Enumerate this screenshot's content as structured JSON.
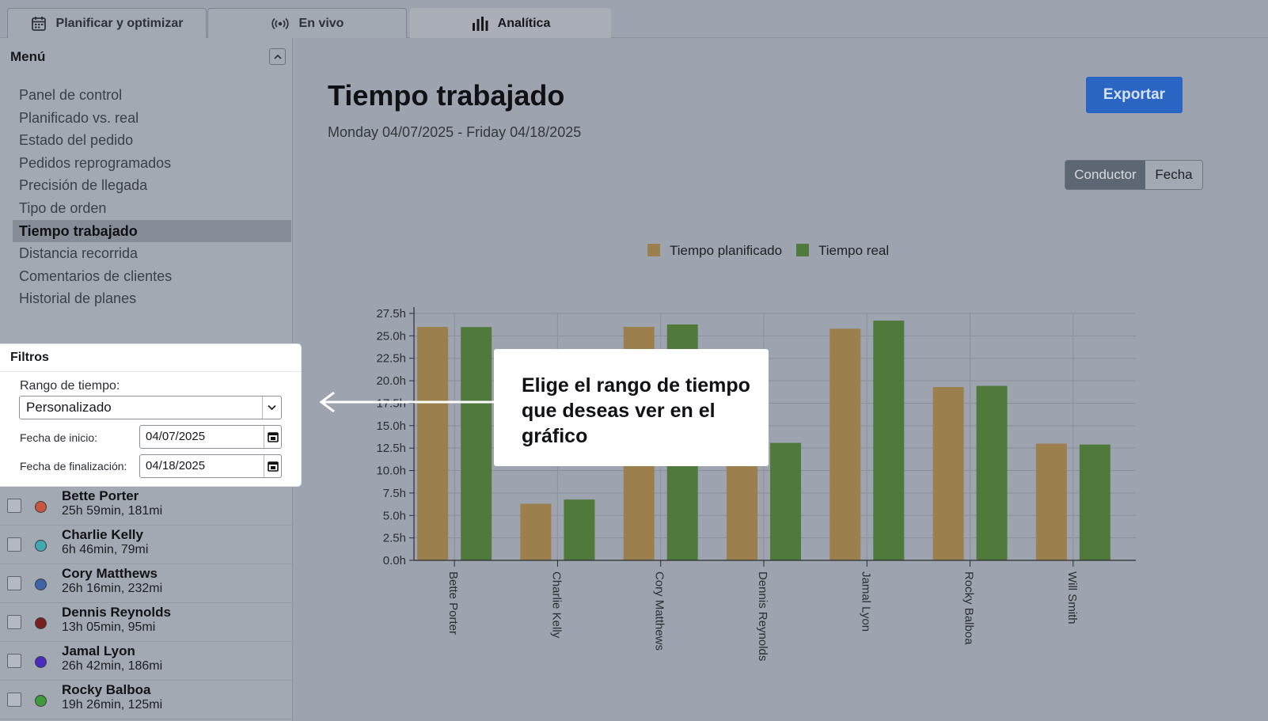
{
  "tabs": [
    {
      "label": "Planificar y optimizar",
      "icon": "calendar-icon"
    },
    {
      "label": "En vivo",
      "icon": "broadcast-icon"
    },
    {
      "label": "Analítica",
      "icon": "bar-chart-icon"
    }
  ],
  "sidebar": {
    "menu_title": "Menú",
    "items": [
      {
        "label": "Panel de control"
      },
      {
        "label": "Planificado vs. real"
      },
      {
        "label": "Estado del pedido"
      },
      {
        "label": "Pedidos reprogramados"
      },
      {
        "label": "Precisión de llegada"
      },
      {
        "label": "Tipo de orden"
      },
      {
        "label": "Tiempo trabajado"
      },
      {
        "label": "Distancia recorrida"
      },
      {
        "label": "Comentarios de clientes"
      },
      {
        "label": "Historial de planes"
      }
    ],
    "active_item": "Tiempo trabajado"
  },
  "filters": {
    "title": "Filtros",
    "range_label": "Rango de tiempo:",
    "range_value": "Personalizado",
    "start_label": "Fecha de inicio:",
    "start_value": "04/07/2025",
    "end_label": "Fecha de finalización:",
    "end_value": "04/18/2025"
  },
  "drivers": [
    {
      "name": "Bette Porter",
      "stats": "25h 59min, 181mi",
      "color": "#c8553d"
    },
    {
      "name": "Charlie Kelly",
      "stats": "6h 46min, 79mi",
      "color": "#3fa8b0"
    },
    {
      "name": "Cory Matthews",
      "stats": "26h 16min, 232mi",
      "color": "#3f63a8"
    },
    {
      "name": "Dennis Reynolds",
      "stats": "13h 05min, 95mi",
      "color": "#7a1f1f"
    },
    {
      "name": "Jamal Lyon",
      "stats": "26h 42min, 186mi",
      "color": "#4b2bbf"
    },
    {
      "name": "Rocky Balboa",
      "stats": "19h 26min, 125mi",
      "color": "#3f9a3a"
    }
  ],
  "main": {
    "title": "Tiempo trabajado",
    "date_range": "Monday 04/07/2025 - Friday 04/18/2025",
    "export_label": "Exportar",
    "toggle": {
      "active": "Conductor",
      "inactive": "Fecha"
    }
  },
  "callout": {
    "text_lines": [
      "Elige el rango de tiempo",
      "que deseas ver en el",
      "gráfico"
    ]
  },
  "colors": {
    "planned": "#9b7f4d",
    "actual": "#4f7a3c",
    "accent": "#2a65c4"
  },
  "chart_data": {
    "type": "bar",
    "categories": [
      "Bette Porter",
      "Charlie Kelly",
      "Cory Matthews",
      "Dennis Reynolds",
      "Jamal Lyon",
      "Rocky Balboa",
      "Will Smith"
    ],
    "series": [
      {
        "name": "Tiempo planificado",
        "values": [
          26.0,
          6.3,
          26.0,
          13.0,
          25.8,
          19.3,
          13.0
        ]
      },
      {
        "name": "Tiempo real",
        "values": [
          25.98,
          6.77,
          26.27,
          13.08,
          26.7,
          19.43,
          12.9
        ]
      }
    ],
    "ylim": [
      0,
      27.5
    ],
    "yticks": [
      "0.0h",
      "2.5h",
      "5.0h",
      "7.5h",
      "10.0h",
      "12.5h",
      "15.0h",
      "17.5h",
      "20.0h",
      "22.5h",
      "25.0h",
      "27.5h"
    ],
    "legend_position": "top-center",
    "grid": true
  }
}
